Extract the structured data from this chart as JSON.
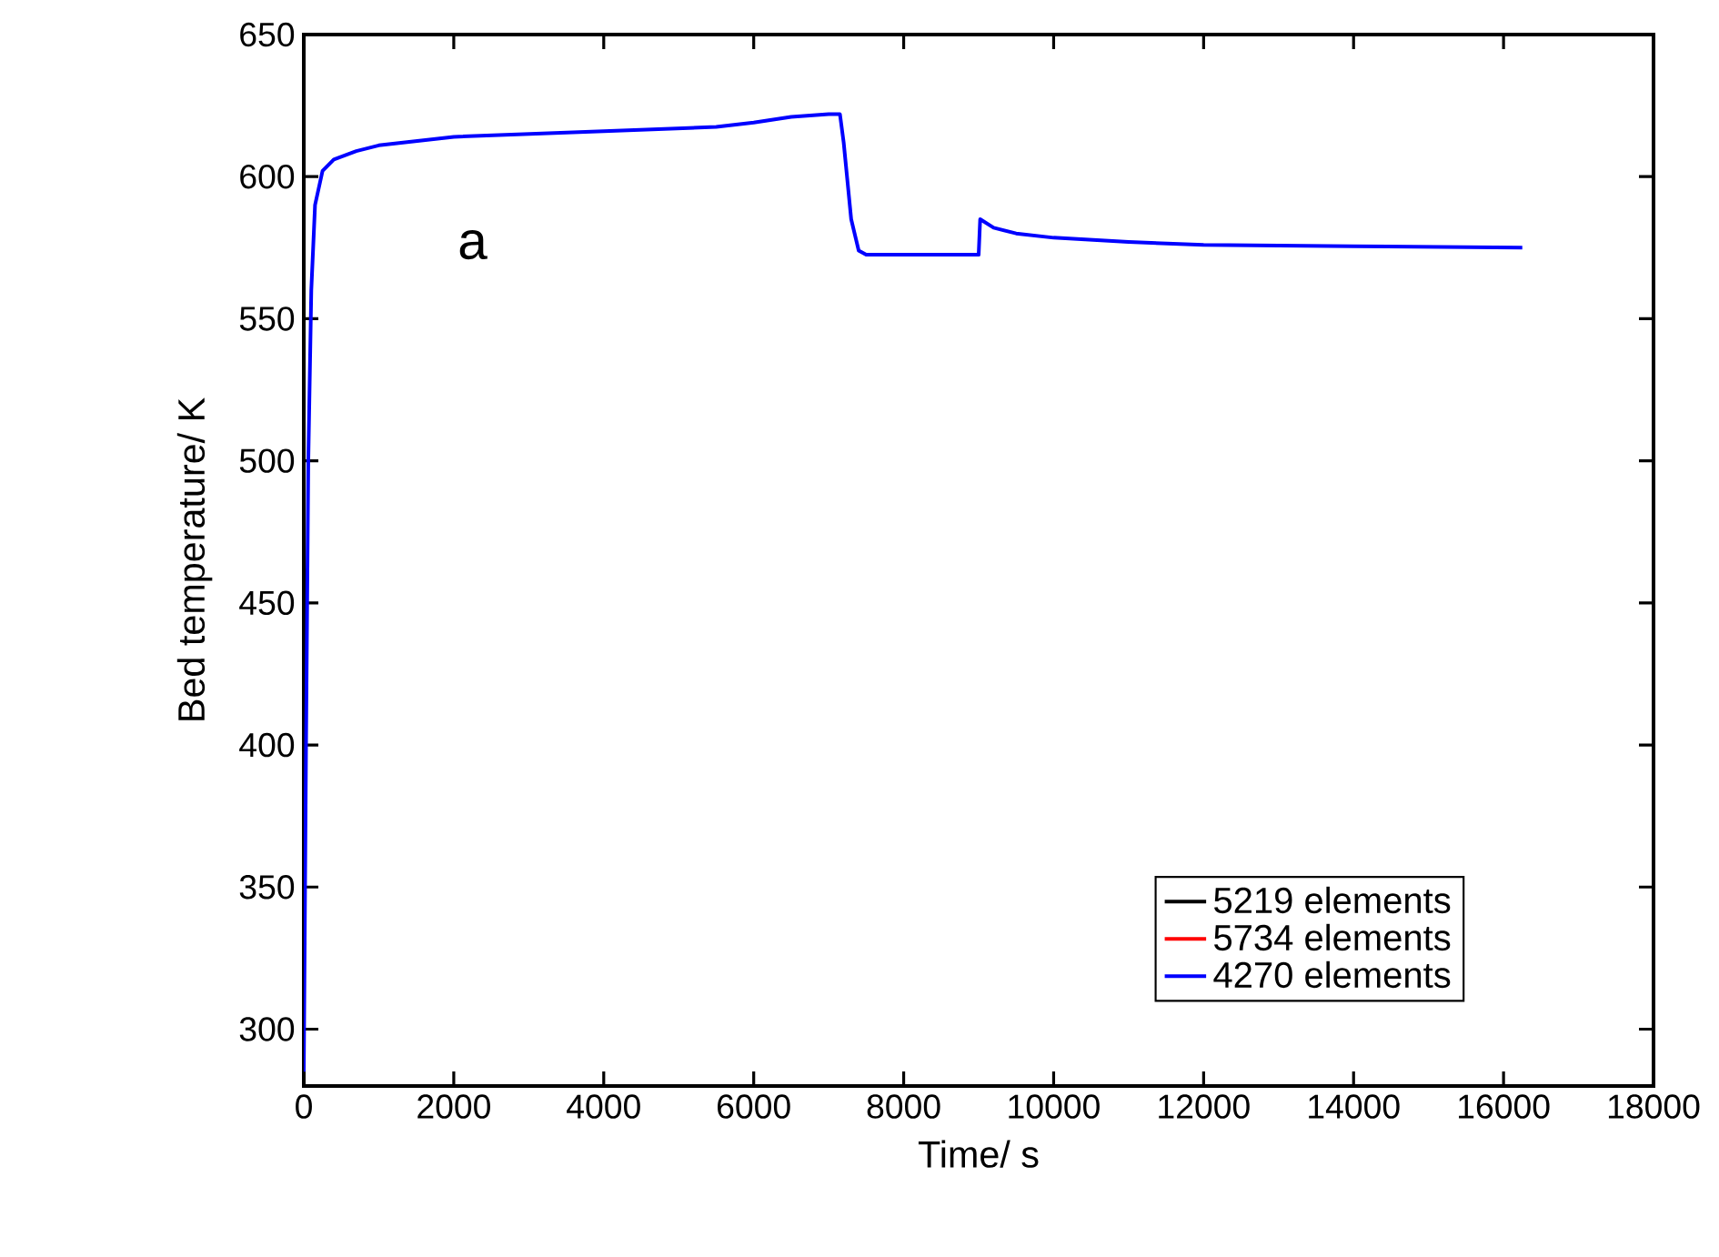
{
  "chart_data": {
    "type": "line",
    "xlabel": "Time/ s",
    "ylabel": "Bed temperature/ K",
    "annotations": [
      "a"
    ],
    "x": [
      0,
      30,
      60,
      100,
      150,
      250,
      400,
      700,
      1000,
      2000,
      4000,
      5500,
      6000,
      6500,
      7000,
      7150,
      7200,
      7300,
      7400,
      7500,
      9000,
      9020,
      9200,
      9500,
      10000,
      11000,
      12000,
      14000,
      16250
    ],
    "series": [
      {
        "name": "5219 elements",
        "color": "#000000",
        "values": [
          null,
          null,
          null,
          null,
          null,
          null,
          null,
          null,
          null,
          null,
          null,
          null,
          null,
          null,
          null,
          null,
          null,
          null,
          null,
          null,
          null,
          null,
          null,
          null,
          null,
          null,
          null,
          null,
          null
        ]
      },
      {
        "name": "5734 elements",
        "color": "#ff0000",
        "values": [
          null,
          null,
          null,
          null,
          null,
          null,
          null,
          null,
          null,
          null,
          null,
          null,
          null,
          null,
          null,
          null,
          null,
          null,
          null,
          null,
          null,
          null,
          null,
          null,
          null,
          null,
          null,
          null,
          null
        ]
      },
      {
        "name": "4270 elements",
        "color": "#0000ff",
        "values": [
          285,
          400,
          500,
          560,
          590,
          602,
          606,
          609,
          611,
          614,
          616,
          617.5,
          619,
          621,
          622,
          622,
          612,
          585,
          574,
          572.5,
          572.5,
          585,
          582,
          580,
          578.5,
          577,
          576,
          575.5,
          575
        ]
      }
    ],
    "xlim": [
      0,
      18000
    ],
    "xticks": [
      0,
      2000,
      4000,
      6000,
      8000,
      10000,
      12000,
      14000,
      16000,
      18000
    ],
    "ylim": [
      280,
      650
    ],
    "yticks": [
      300,
      350,
      400,
      450,
      500,
      550,
      600,
      650
    ],
    "grid": false,
    "legend": "bottom right",
    "marker": "none",
    "line_style": "solid"
  }
}
